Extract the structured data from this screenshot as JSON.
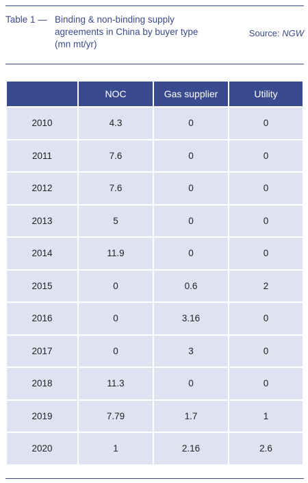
{
  "caption": {
    "label": "Table 1 —",
    "title": "Binding & non-binding supply agreements in China by buyer type (mn mt/yr)",
    "source_label": "Source:",
    "source_name": "NGW"
  },
  "table": {
    "headers": [
      "",
      "NOC",
      "Gas supplier",
      "Utility"
    ],
    "rows": [
      {
        "year": "2010",
        "noc": "4.3",
        "gas_supplier": "0",
        "utility": "0"
      },
      {
        "year": "2011",
        "noc": "7.6",
        "gas_supplier": "0",
        "utility": "0"
      },
      {
        "year": "2012",
        "noc": "7.6",
        "gas_supplier": "0",
        "utility": "0"
      },
      {
        "year": "2013",
        "noc": "5",
        "gas_supplier": "0",
        "utility": "0"
      },
      {
        "year": "2014",
        "noc": "11.9",
        "gas_supplier": "0",
        "utility": "0"
      },
      {
        "year": "2015",
        "noc": "0",
        "gas_supplier": "0.6",
        "utility": "2"
      },
      {
        "year": "2016",
        "noc": "0",
        "gas_supplier": "3.16",
        "utility": "0"
      },
      {
        "year": "2017",
        "noc": "0",
        "gas_supplier": "3",
        "utility": "0"
      },
      {
        "year": "2018",
        "noc": "11.3",
        "gas_supplier": "0",
        "utility": "0"
      },
      {
        "year": "2019",
        "noc": "7.79",
        "gas_supplier": "1.7",
        "utility": "1"
      },
      {
        "year": "2020",
        "noc": "1",
        "gas_supplier": "2.16",
        "utility": "2.6"
      }
    ]
  },
  "colors": {
    "accent": "#3a4a8a",
    "header_bg": "#3a4a8e",
    "cell_bg": "#dfe3f1"
  }
}
